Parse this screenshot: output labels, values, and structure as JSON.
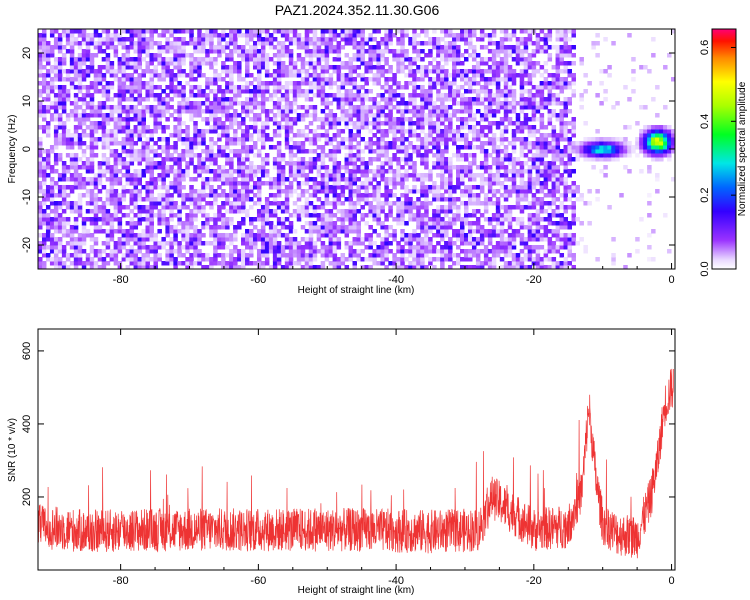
{
  "figure": {
    "title": "PAZ1.2024.352.11.30.G06"
  },
  "chart_data": [
    {
      "type": "heatmap",
      "xlabel": "Height of straight line (km)",
      "ylabel": "Frequency (Hz)",
      "xlim": [
        -92,
        0.5
      ],
      "ylim": [
        -25,
        25
      ],
      "xticks": [
        -80,
        -60,
        -40,
        -20,
        0
      ],
      "yticks": [
        -20,
        -10,
        0,
        10,
        20
      ],
      "colorbar": {
        "label": "Normalized spectral amplitude",
        "range": [
          0.0,
          0.65
        ],
        "ticks": [
          0.0,
          0.2,
          0.4,
          0.6
        ],
        "colormap": "rainbow (purple-blue-cyan-green-yellow-red-magenta)"
      },
      "background_level": "random speckle 0.0-0.15 from -92 to -14 km, mostly empty from -14 to 0 km",
      "features": [
        {
          "x_range": [
            -13,
            -7
          ],
          "y_range": [
            -1,
            1
          ],
          "peak_value": 0.35
        },
        {
          "x_range": [
            -4,
            0
          ],
          "y_range": [
            0,
            3
          ],
          "peak_value": 0.55
        }
      ]
    },
    {
      "type": "line",
      "xlabel": "Height of straight line (km)",
      "ylabel": "SNR (10 * v/v)",
      "xlim": [
        -92,
        0.5
      ],
      "ylim": [
        0,
        660
      ],
      "xticks": [
        -80,
        -60,
        -40,
        -20,
        0
      ],
      "yticks": [
        200,
        400,
        600
      ],
      "line_color": "#ee3333",
      "series": [
        {
          "x": [
            -92,
            -85,
            -75,
            -65,
            -55,
            -45,
            -35,
            -28,
            -26,
            -20,
            -15,
            -13,
            -12,
            -11,
            -10,
            -8,
            -5,
            -3,
            -2,
            -1,
            0
          ],
          "values": [
            120,
            105,
            110,
            110,
            110,
            110,
            105,
            110,
            200,
            110,
            120,
            220,
            450,
            250,
            130,
            100,
            90,
            200,
            300,
            450,
            500
          ],
          "noise_amplitude": 60
        }
      ]
    }
  ],
  "colors": {
    "line": "#ee3333",
    "axes": "#000000",
    "background": "#ffffff"
  }
}
